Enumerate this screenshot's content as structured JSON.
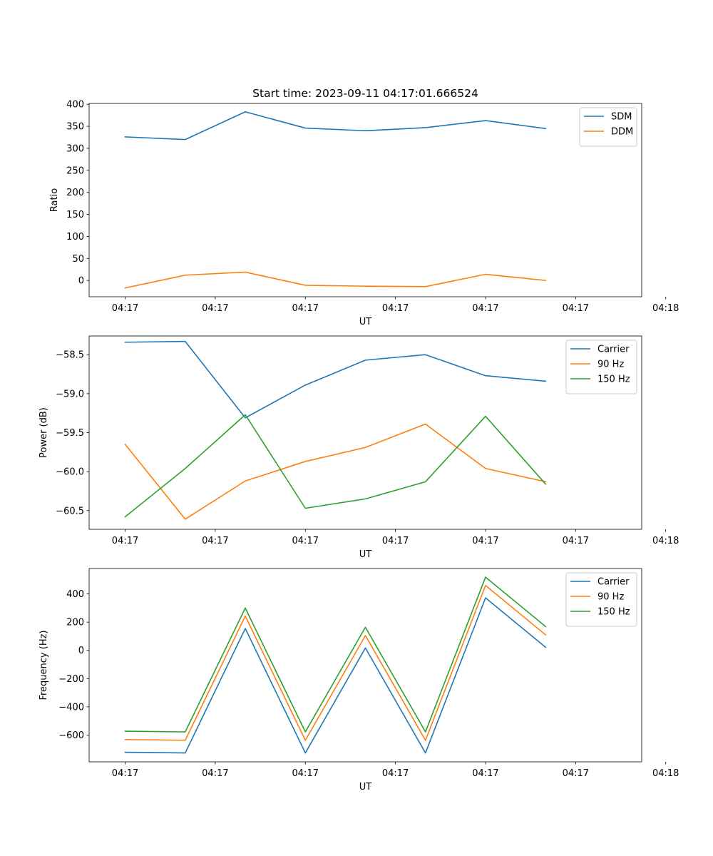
{
  "figure_title": "Start time: 2023-09-11 04:17:01.666524",
  "colors": {
    "blue": "#1f77b4",
    "orange": "#ff7f0e",
    "green": "#2ca02c"
  },
  "chart_data": [
    {
      "type": "line",
      "title": "Start time: 2023-09-11 04:17:01.666524",
      "xlabel": "UT",
      "ylabel": "Ratio",
      "xlim": [
        -0.6,
        8.6
      ],
      "ylim": [
        -37,
        402
      ],
      "x": [
        0,
        1,
        2,
        3,
        4,
        5,
        6,
        7
      ],
      "xticks": [
        0,
        1.5,
        3,
        4.5,
        6,
        7.5,
        9
      ],
      "xtick_labels": [
        "04:17",
        "04:17",
        "04:17",
        "04:17",
        "04:17",
        "04:17",
        "04:18"
      ],
      "yticks": [
        0,
        50,
        100,
        150,
        200,
        250,
        300,
        350,
        400
      ],
      "ytick_labels": [
        "0",
        "50",
        "100",
        "150",
        "200",
        "250",
        "300",
        "350",
        "400"
      ],
      "legend_position": "top-right",
      "series": [
        {
          "name": "SDM",
          "color": "#1f77b4",
          "values": [
            326,
            320,
            383,
            346,
            340,
            347,
            363,
            345
          ]
        },
        {
          "name": "DDM",
          "color": "#ff7f0e",
          "values": [
            -17,
            12,
            19,
            -11,
            -13,
            -14,
            14,
            0
          ]
        }
      ]
    },
    {
      "type": "line",
      "xlabel": "UT",
      "ylabel": "Power (dB)",
      "xlim": [
        -0.6,
        8.6
      ],
      "ylim": [
        -60.74,
        -58.26
      ],
      "x": [
        0,
        1,
        2,
        3,
        4,
        5,
        6,
        7
      ],
      "xticks": [
        0,
        1.5,
        3,
        4.5,
        6,
        7.5,
        9
      ],
      "xtick_labels": [
        "04:17",
        "04:17",
        "04:17",
        "04:17",
        "04:17",
        "04:17",
        "04:18"
      ],
      "yticks": [
        -58.5,
        -59.0,
        -59.5,
        -60.0,
        -60.5
      ],
      "ytick_labels": [
        "−58.5",
        "−59.0",
        "−59.5",
        "−60.0",
        "−60.5"
      ],
      "legend_position": "top-right",
      "series": [
        {
          "name": "Carrier",
          "color": "#1f77b4",
          "values": [
            -58.34,
            -58.33,
            -59.31,
            -58.89,
            -58.57,
            -58.5,
            -58.77,
            -58.84
          ]
        },
        {
          "name": "90 Hz",
          "color": "#ff7f0e",
          "values": [
            -59.65,
            -60.61,
            -60.12,
            -59.87,
            -59.69,
            -59.39,
            -59.96,
            -60.13
          ]
        },
        {
          "name": "150 Hz",
          "color": "#2ca02c",
          "values": [
            -60.58,
            -59.96,
            -59.27,
            -60.47,
            -60.35,
            -60.13,
            -59.29,
            -60.16
          ]
        }
      ]
    },
    {
      "type": "line",
      "xlabel": "UT",
      "ylabel": "Frequency (Hz)",
      "xlim": [
        -0.6,
        8.6
      ],
      "ylim": [
        -790,
        580
      ],
      "x": [
        0,
        1,
        2,
        3,
        4,
        5,
        6,
        7
      ],
      "xticks": [
        0,
        1.5,
        3,
        4.5,
        6,
        7.5,
        9
      ],
      "xtick_labels": [
        "04:17",
        "04:17",
        "04:17",
        "04:17",
        "04:17",
        "04:17",
        "04:18"
      ],
      "yticks": [
        -600,
        -400,
        -200,
        0,
        200,
        400
      ],
      "ytick_labels": [
        "−600",
        "−400",
        "−200",
        "0",
        "200",
        "400"
      ],
      "legend_position": "top-right",
      "series": [
        {
          "name": "Carrier",
          "color": "#1f77b4",
          "values": [
            -722,
            -727,
            155,
            -727,
            17,
            -727,
            372,
            22
          ]
        },
        {
          "name": "90 Hz",
          "color": "#ff7f0e",
          "values": [
            -632,
            -637,
            243,
            -637,
            105,
            -637,
            460,
            110
          ]
        },
        {
          "name": "150 Hz",
          "color": "#2ca02c",
          "values": [
            -573,
            -578,
            300,
            -578,
            164,
            -578,
            519,
            169
          ]
        }
      ]
    }
  ]
}
